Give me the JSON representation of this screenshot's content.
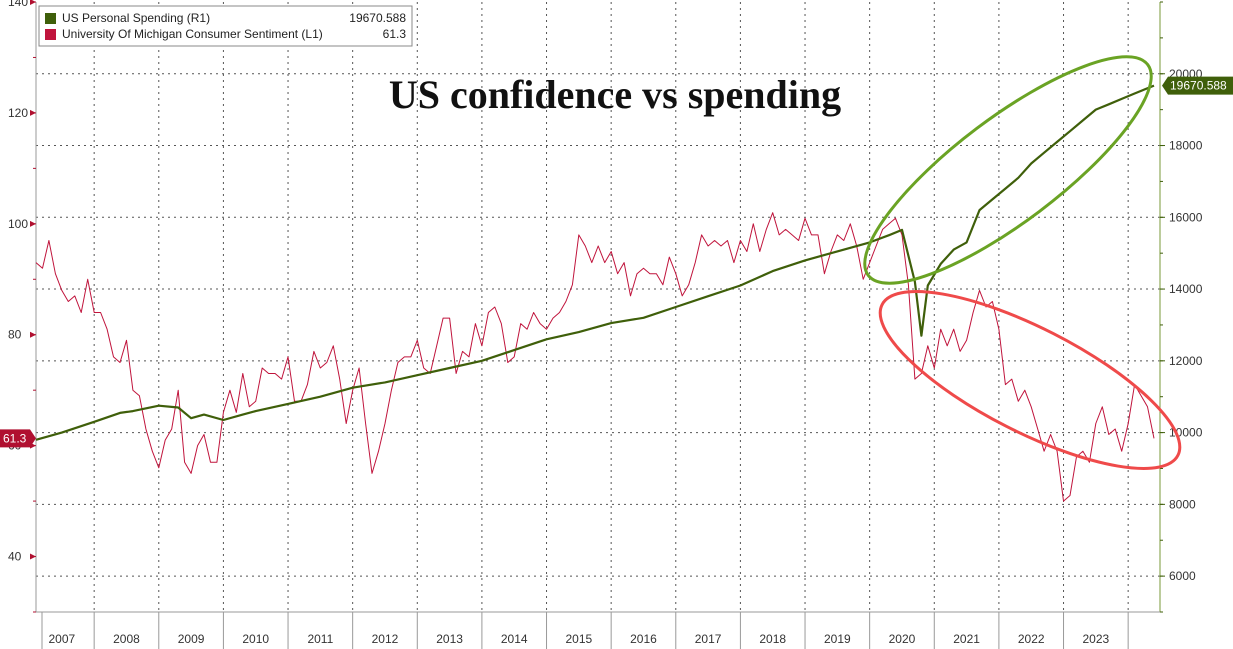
{
  "chart_data": {
    "type": "line",
    "title": "US confidence vs spending",
    "colors": {
      "spending": "#3f5f0a",
      "sentiment": "#c0143c",
      "green_ellipse": "#6aa324",
      "red_ellipse": "#ef4a4a",
      "grid": "#555555",
      "left_axis": "#b01030",
      "right_axis": "#3f5f0a"
    },
    "legend": {
      "placement": "top-left",
      "entries": [
        {
          "name": "US Personal Spending (R1)",
          "last": "19670.588",
          "color": "#3f5f0a"
        },
        {
          "name": "University Of Michigan Consumer Sentiment (L1)",
          "last": "61.3",
          "color": "#c0143c"
        }
      ]
    },
    "left_axis": {
      "min": 30,
      "max": 140,
      "ticks": [
        "40",
        "60",
        "80",
        "100",
        "120",
        "140"
      ],
      "last_label": "61.3"
    },
    "right_axis": {
      "min": 5000,
      "max": 22000,
      "ticks": [
        "6000",
        "8000",
        "10000",
        "12000",
        "14000",
        "16000",
        "18000",
        "20000"
      ],
      "last_label": "19670.588"
    },
    "x_axis": {
      "min": 2006.6,
      "max": 2023.9,
      "years": [
        "2007",
        "2008",
        "2009",
        "2010",
        "2011",
        "2012",
        "2013",
        "2014",
        "2015",
        "2016",
        "2017",
        "2018",
        "2019",
        "2020",
        "2021",
        "2022",
        "2023"
      ]
    },
    "grid": true,
    "series": [
      {
        "name": "University Of Michigan Consumer Sentiment (L1)",
        "axis": "left",
        "points": [
          [
            2006.6,
            93
          ],
          [
            2006.7,
            92
          ],
          [
            2006.8,
            97
          ],
          [
            2006.9,
            91
          ],
          [
            2007.0,
            88
          ],
          [
            2007.1,
            86
          ],
          [
            2007.2,
            87
          ],
          [
            2007.3,
            84
          ],
          [
            2007.4,
            90
          ],
          [
            2007.5,
            84
          ],
          [
            2007.6,
            84
          ],
          [
            2007.7,
            81
          ],
          [
            2007.8,
            76
          ],
          [
            2007.9,
            75
          ],
          [
            2008.0,
            79
          ],
          [
            2008.1,
            70
          ],
          [
            2008.2,
            69
          ],
          [
            2008.3,
            63
          ],
          [
            2008.4,
            59
          ],
          [
            2008.5,
            56
          ],
          [
            2008.6,
            61
          ],
          [
            2008.7,
            63
          ],
          [
            2008.8,
            70
          ],
          [
            2008.9,
            57
          ],
          [
            2009.0,
            55
          ],
          [
            2009.1,
            60
          ],
          [
            2009.2,
            62
          ],
          [
            2009.3,
            57
          ],
          [
            2009.4,
            57
          ],
          [
            2009.5,
            66
          ],
          [
            2009.6,
            70
          ],
          [
            2009.7,
            66
          ],
          [
            2009.8,
            73
          ],
          [
            2009.9,
            67
          ],
          [
            2010.0,
            68
          ],
          [
            2010.1,
            74
          ],
          [
            2010.2,
            73
          ],
          [
            2010.3,
            73
          ],
          [
            2010.4,
            72
          ],
          [
            2010.5,
            76
          ],
          [
            2010.6,
            68
          ],
          [
            2010.7,
            68
          ],
          [
            2010.8,
            71
          ],
          [
            2010.9,
            77
          ],
          [
            2011.0,
            74
          ],
          [
            2011.1,
            75
          ],
          [
            2011.2,
            78
          ],
          [
            2011.3,
            72
          ],
          [
            2011.4,
            64
          ],
          [
            2011.5,
            70
          ],
          [
            2011.6,
            74
          ],
          [
            2011.7,
            64
          ],
          [
            2011.8,
            55
          ],
          [
            2011.9,
            59
          ],
          [
            2012.0,
            64
          ],
          [
            2012.1,
            70
          ],
          [
            2012.2,
            75
          ],
          [
            2012.3,
            76
          ],
          [
            2012.4,
            76
          ],
          [
            2012.5,
            79
          ],
          [
            2012.6,
            74
          ],
          [
            2012.7,
            73
          ],
          [
            2012.8,
            78
          ],
          [
            2012.9,
            83
          ],
          [
            2013.0,
            83
          ],
          [
            2013.1,
            73
          ],
          [
            2013.2,
            77
          ],
          [
            2013.3,
            76
          ],
          [
            2013.4,
            82
          ],
          [
            2013.5,
            78
          ],
          [
            2013.6,
            84
          ],
          [
            2013.7,
            85
          ],
          [
            2013.8,
            82
          ],
          [
            2013.9,
            75
          ],
          [
            2014.0,
            76
          ],
          [
            2014.1,
            82
          ],
          [
            2014.2,
            81
          ],
          [
            2014.3,
            84
          ],
          [
            2014.4,
            82
          ],
          [
            2014.5,
            81
          ],
          [
            2014.6,
            83
          ],
          [
            2014.7,
            84
          ],
          [
            2014.8,
            86
          ],
          [
            2014.9,
            89
          ],
          [
            2015.0,
            98
          ],
          [
            2015.1,
            96
          ],
          [
            2015.2,
            93
          ],
          [
            2015.3,
            96
          ],
          [
            2015.4,
            93
          ],
          [
            2015.5,
            95
          ],
          [
            2015.6,
            91
          ],
          [
            2015.7,
            93
          ],
          [
            2015.8,
            87
          ],
          [
            2015.9,
            91
          ],
          [
            2016.0,
            92
          ],
          [
            2016.1,
            91
          ],
          [
            2016.2,
            91
          ],
          [
            2016.3,
            89
          ],
          [
            2016.4,
            94
          ],
          [
            2016.5,
            91
          ],
          [
            2016.6,
            87
          ],
          [
            2016.7,
            89
          ],
          [
            2016.8,
            93
          ],
          [
            2016.9,
            98
          ],
          [
            2017.0,
            96
          ],
          [
            2017.1,
            97
          ],
          [
            2017.2,
            96
          ],
          [
            2017.3,
            97
          ],
          [
            2017.4,
            93
          ],
          [
            2017.5,
            97
          ],
          [
            2017.6,
            95
          ],
          [
            2017.7,
            100
          ],
          [
            2017.8,
            95
          ],
          [
            2017.9,
            99
          ],
          [
            2018.0,
            102
          ],
          [
            2018.1,
            98
          ],
          [
            2018.2,
            99
          ],
          [
            2018.3,
            98
          ],
          [
            2018.4,
            97
          ],
          [
            2018.5,
            101
          ],
          [
            2018.6,
            98
          ],
          [
            2018.7,
            98
          ],
          [
            2018.8,
            91
          ],
          [
            2018.9,
            95
          ],
          [
            2019.0,
            98
          ],
          [
            2019.1,
            97
          ],
          [
            2019.2,
            100
          ],
          [
            2019.3,
            96
          ],
          [
            2019.4,
            90
          ],
          [
            2019.5,
            93
          ],
          [
            2019.6,
            96
          ],
          [
            2019.7,
            99
          ],
          [
            2019.8,
            100
          ],
          [
            2019.9,
            101
          ],
          [
            2020.0,
            98
          ],
          [
            2020.1,
            89
          ],
          [
            2020.2,
            72
          ],
          [
            2020.3,
            73
          ],
          [
            2020.4,
            78
          ],
          [
            2020.5,
            74
          ],
          [
            2020.6,
            81
          ],
          [
            2020.7,
            78
          ],
          [
            2020.8,
            81
          ],
          [
            2020.9,
            77
          ],
          [
            2021.0,
            79
          ],
          [
            2021.1,
            84
          ],
          [
            2021.2,
            88
          ],
          [
            2021.3,
            85
          ],
          [
            2021.4,
            86
          ],
          [
            2021.5,
            81
          ],
          [
            2021.6,
            71
          ],
          [
            2021.7,
            72
          ],
          [
            2021.8,
            68
          ],
          [
            2021.9,
            70
          ],
          [
            2022.0,
            67
          ],
          [
            2022.1,
            63
          ],
          [
            2022.2,
            59
          ],
          [
            2022.3,
            62
          ],
          [
            2022.4,
            59
          ],
          [
            2022.5,
            50
          ],
          [
            2022.6,
            51
          ],
          [
            2022.7,
            58
          ],
          [
            2022.8,
            59
          ],
          [
            2022.9,
            57
          ],
          [
            2023.0,
            64
          ],
          [
            2023.1,
            67
          ],
          [
            2023.2,
            62
          ],
          [
            2023.3,
            63
          ],
          [
            2023.4,
            59
          ],
          [
            2023.5,
            64
          ],
          [
            2023.6,
            71
          ],
          [
            2023.7,
            69
          ],
          [
            2023.8,
            67
          ],
          [
            2023.9,
            61.3
          ]
        ]
      },
      {
        "name": "US Personal Spending (R1)",
        "axis": "right",
        "points": [
          [
            2006.6,
            9800
          ],
          [
            2007.0,
            10000
          ],
          [
            2007.5,
            10300
          ],
          [
            2007.9,
            10550
          ],
          [
            2008.1,
            10600
          ],
          [
            2008.5,
            10750
          ],
          [
            2008.8,
            10700
          ],
          [
            2009.0,
            10400
          ],
          [
            2009.2,
            10500
          ],
          [
            2009.5,
            10350
          ],
          [
            2009.8,
            10500
          ],
          [
            2010.0,
            10600
          ],
          [
            2010.5,
            10800
          ],
          [
            2011.0,
            11000
          ],
          [
            2011.5,
            11250
          ],
          [
            2012.0,
            11400
          ],
          [
            2012.5,
            11600
          ],
          [
            2013.0,
            11800
          ],
          [
            2013.5,
            12000
          ],
          [
            2014.0,
            12300
          ],
          [
            2014.5,
            12600
          ],
          [
            2015.0,
            12800
          ],
          [
            2015.5,
            13050
          ],
          [
            2016.0,
            13200
          ],
          [
            2016.5,
            13500
          ],
          [
            2017.0,
            13800
          ],
          [
            2017.5,
            14100
          ],
          [
            2018.0,
            14500
          ],
          [
            2018.5,
            14800
          ],
          [
            2019.0,
            15050
          ],
          [
            2019.5,
            15300
          ],
          [
            2019.8,
            15500
          ],
          [
            2020.0,
            15650
          ],
          [
            2020.2,
            14200
          ],
          [
            2020.3,
            12700
          ],
          [
            2020.4,
            14100
          ],
          [
            2020.6,
            14700
          ],
          [
            2020.8,
            15100
          ],
          [
            2021.0,
            15300
          ],
          [
            2021.2,
            16200
          ],
          [
            2021.4,
            16500
          ],
          [
            2021.6,
            16800
          ],
          [
            2021.8,
            17100
          ],
          [
            2022.0,
            17500
          ],
          [
            2022.2,
            17800
          ],
          [
            2022.4,
            18100
          ],
          [
            2022.6,
            18400
          ],
          [
            2022.8,
            18700
          ],
          [
            2023.0,
            19000
          ],
          [
            2023.2,
            19150
          ],
          [
            2023.4,
            19300
          ],
          [
            2023.6,
            19450
          ],
          [
            2023.9,
            19670.588
          ]
        ]
      }
    ],
    "annotations": [
      {
        "type": "ellipse",
        "color": "green",
        "around": "US Personal Spending 2020-2023"
      },
      {
        "type": "ellipse",
        "color": "red",
        "around": "University Of Michigan Consumer Sentiment 2020-2023"
      }
    ]
  }
}
